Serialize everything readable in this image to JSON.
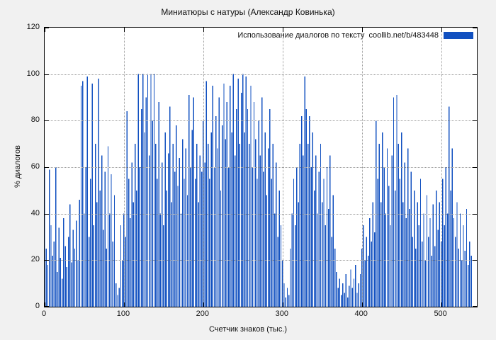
{
  "colors": {
    "bar": "#1150c0",
    "background": "#f1f1f1",
    "plot_background": "#ffffff",
    "grid": "#9a9a9a",
    "border": "#000000",
    "text": "#111111"
  },
  "chart_data": {
    "type": "bar",
    "title": "Миниатюры с натуры (Александр Ковинька)",
    "legend": "Использование диалогов по тексту  coollib.net/b/483448",
    "legend_position": "top-right",
    "xlabel": "Счетчик знаков (тыс.)",
    "ylabel": "% диалогов",
    "xlim": [
      0,
      545
    ],
    "ylim": [
      0,
      120
    ],
    "xticks": [
      0,
      100,
      200,
      300,
      400,
      500
    ],
    "yticks": [
      0,
      20,
      40,
      60,
      80,
      100,
      120
    ],
    "grid": true,
    "x_start": 0,
    "x_step": 2,
    "values": [
      60,
      25,
      18,
      59,
      35,
      22,
      28,
      60,
      15,
      34,
      21,
      12,
      38,
      26,
      17,
      30,
      44,
      19,
      33,
      25,
      37,
      20,
      46,
      95,
      97,
      40,
      60,
      99,
      30,
      55,
      96,
      35,
      70,
      45,
      98,
      50,
      65,
      33,
      58,
      25,
      69,
      40,
      57,
      28,
      48,
      10,
      5,
      8,
      35,
      20,
      40,
      30,
      84,
      55,
      38,
      62,
      45,
      70,
      50,
      100,
      60,
      85,
      100,
      75,
      90,
      100,
      65,
      100,
      80,
      100,
      70,
      55,
      88,
      40,
      62,
      35,
      75,
      50,
      66,
      86,
      45,
      70,
      58,
      78,
      52,
      64,
      40,
      72,
      55,
      68,
      48,
      91,
      60,
      76,
      90,
      55,
      70,
      45,
      65,
      58,
      80,
      62,
      97,
      70,
      55,
      75,
      95,
      60,
      82,
      68,
      90,
      50,
      78,
      96,
      72,
      88,
      60,
      95,
      75,
      100,
      65,
      85,
      98,
      70,
      92,
      100,
      75,
      99,
      85,
      70,
      95,
      60,
      88,
      72,
      55,
      80,
      65,
      90,
      58,
      75,
      48,
      68,
      85,
      55,
      70,
      40,
      62,
      30,
      50,
      35,
      20,
      10,
      4,
      8,
      5,
      25,
      40,
      55,
      35,
      60,
      45,
      70,
      82,
      65,
      99,
      85,
      70,
      82,
      60,
      75,
      50,
      65,
      40,
      58,
      70,
      45,
      55,
      35,
      60,
      42,
      65,
      30,
      48,
      25,
      15,
      8,
      12,
      5,
      10,
      6,
      14,
      4,
      9,
      16,
      8,
      12,
      18,
      6,
      10,
      14,
      25,
      35,
      20,
      30,
      22,
      38,
      28,
      45,
      32,
      80,
      55,
      70,
      45,
      75,
      60,
      40,
      68,
      52,
      35,
      65,
      90,
      50,
      91,
      70,
      55,
      75,
      45,
      62,
      38,
      68,
      42,
      58,
      30,
      50,
      25,
      45,
      35,
      55,
      28,
      40,
      20,
      48,
      30,
      38,
      22,
      44,
      26,
      50,
      33,
      45,
      28,
      55,
      35,
      60,
      40,
      86,
      50,
      68,
      38,
      30,
      45,
      25,
      40,
      20,
      35,
      24,
      42,
      18,
      28,
      22
    ]
  }
}
